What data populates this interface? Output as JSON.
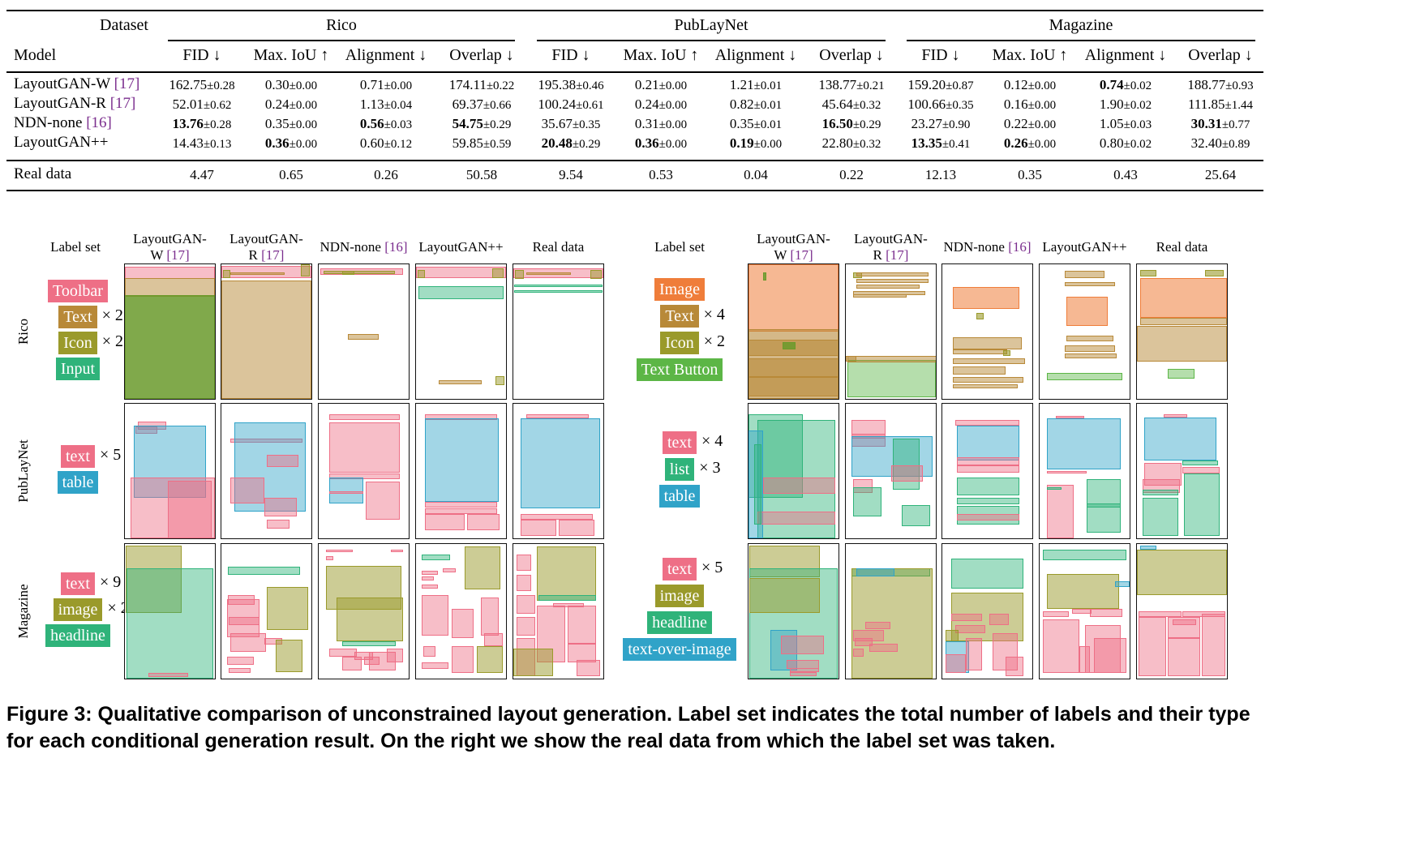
{
  "table": {
    "dataset_label": "Dataset",
    "model_label": "Model",
    "groups": [
      "Rico",
      "PubLayNet",
      "Magazine"
    ],
    "metrics": [
      "FID ↓",
      "Max. IoU ↑",
      "Alignment ↓",
      "Overlap ↓"
    ],
    "rows": [
      {
        "model": "LayoutGAN-W ",
        "cite": "[17]",
        "cells": [
          [
            "162.75",
            "±0.28",
            false
          ],
          [
            "0.30",
            "±0.00",
            false
          ],
          [
            "0.71",
            "±0.00",
            false
          ],
          [
            "174.11",
            "±0.22",
            false
          ],
          [
            "195.38",
            "±0.46",
            false
          ],
          [
            "0.21",
            "±0.00",
            false
          ],
          [
            "1.21",
            "±0.01",
            false
          ],
          [
            "138.77",
            "±0.21",
            false
          ],
          [
            "159.20",
            "±0.87",
            false
          ],
          [
            "0.12",
            "±0.00",
            false
          ],
          [
            "0.74",
            "±0.02",
            true
          ],
          [
            "188.77",
            "±0.93",
            false
          ]
        ]
      },
      {
        "model": "LayoutGAN-R ",
        "cite": "[17]",
        "cells": [
          [
            "52.01",
            "±0.62",
            false
          ],
          [
            "0.24",
            "±0.00",
            false
          ],
          [
            "1.13",
            "±0.04",
            false
          ],
          [
            "69.37",
            "±0.66",
            false
          ],
          [
            "100.24",
            "±0.61",
            false
          ],
          [
            "0.24",
            "±0.00",
            false
          ],
          [
            "0.82",
            "±0.01",
            false
          ],
          [
            "45.64",
            "±0.32",
            false
          ],
          [
            "100.66",
            "±0.35",
            false
          ],
          [
            "0.16",
            "±0.00",
            false
          ],
          [
            "1.90",
            "±0.02",
            false
          ],
          [
            "111.85",
            "±1.44",
            false
          ]
        ]
      },
      {
        "model": "NDN-none ",
        "cite": "[16]",
        "cells": [
          [
            "13.76",
            "±0.28",
            true
          ],
          [
            "0.35",
            "±0.00",
            false
          ],
          [
            "0.56",
            "±0.03",
            true
          ],
          [
            "54.75",
            "±0.29",
            true
          ],
          [
            "35.67",
            "±0.35",
            false
          ],
          [
            "0.31",
            "±0.00",
            false
          ],
          [
            "0.35",
            "±0.01",
            false
          ],
          [
            "16.50",
            "±0.29",
            true
          ],
          [
            "23.27",
            "±0.90",
            false
          ],
          [
            "0.22",
            "±0.00",
            false
          ],
          [
            "1.05",
            "±0.03",
            false
          ],
          [
            "30.31",
            "±0.77",
            true
          ]
        ]
      },
      {
        "model": "LayoutGAN++",
        "cite": "",
        "cells": [
          [
            "14.43",
            "±0.13",
            false
          ],
          [
            "0.36",
            "±0.00",
            true
          ],
          [
            "0.60",
            "±0.12",
            false
          ],
          [
            "59.85",
            "±0.59",
            false
          ],
          [
            "20.48",
            "±0.29",
            true
          ],
          [
            "0.36",
            "±0.00",
            true
          ],
          [
            "0.19",
            "±0.00",
            true
          ],
          [
            "22.80",
            "±0.32",
            false
          ],
          [
            "13.35",
            "±0.41",
            true
          ],
          [
            "0.26",
            "±0.00",
            true
          ],
          [
            "0.80",
            "±0.02",
            false
          ],
          [
            "32.40",
            "±0.89",
            false
          ]
        ]
      }
    ],
    "real": {
      "model": "Real data",
      "cells": [
        "4.47",
        "0.65",
        "0.26",
        "50.58",
        "9.54",
        "0.53",
        "0.04",
        "0.22",
        "12.13",
        "0.35",
        "0.43",
        "25.64"
      ]
    }
  },
  "figure": {
    "label_set": "Label set",
    "columns": [
      {
        "name": "LayoutGAN-\nW",
        "cite": "[17]"
      },
      {
        "name": "LayoutGAN-\nR",
        "cite": "[17]"
      },
      {
        "name": "NDN-none",
        "cite": "[16]"
      },
      {
        "name": "LayoutGAN++",
        "cite": ""
      },
      {
        "name": "Real data",
        "cite": ""
      }
    ],
    "row_names": [
      "Rico",
      "PubLayNet",
      "Magazine"
    ],
    "left_labels": [
      [
        [
          "Toolbar",
          "#ee6f86",
          ""
        ],
        [
          "Text",
          "#b88938",
          "× 2"
        ],
        [
          "Icon",
          "#9a9a2b",
          "× 2"
        ],
        [
          "Input",
          "#2fb37a",
          ""
        ]
      ],
      [
        [
          "text",
          "#ee6f86",
          "× 5"
        ],
        [
          "table",
          "#30a3c8",
          ""
        ]
      ],
      [
        [
          "text",
          "#ee6f86",
          "× 9"
        ],
        [
          "image",
          "#9a9a2b",
          "× 2"
        ],
        [
          "headline",
          "#2fb37a",
          ""
        ]
      ]
    ],
    "right_labels": [
      [
        [
          "Image",
          "#ef7d3a",
          ""
        ],
        [
          "Text",
          "#b88938",
          "× 4"
        ],
        [
          "Icon",
          "#9a9a2b",
          "× 2"
        ],
        [
          "Text Button",
          "#5cb646",
          ""
        ]
      ],
      [
        [
          "text",
          "#ee6f86",
          "× 4"
        ],
        [
          "list",
          "#2fb37a",
          "× 3"
        ],
        [
          "table",
          "#30a3c8",
          ""
        ]
      ],
      [
        [
          "text",
          "#ee6f86",
          "× 5"
        ],
        [
          "image",
          "#9a9a2b",
          ""
        ],
        [
          "headline",
          "#2fb37a",
          ""
        ],
        [
          "text-over-image",
          "#30a3c8",
          ""
        ]
      ]
    ],
    "colors": {
      "pink": "#ee6f86",
      "tan": "#b88938",
      "olive": "#9a9a2b",
      "green": "#2fb37a",
      "blue": "#30a3c8",
      "orange": "#ef7d3a",
      "lime": "#5cb646"
    }
  },
  "caption": "Figure 3: Qualitative comparison of unconstrained layout generation. Label set indicates the total number of labels and their type for each conditional generation result. On the right we show the real data from which the label set was taken."
}
